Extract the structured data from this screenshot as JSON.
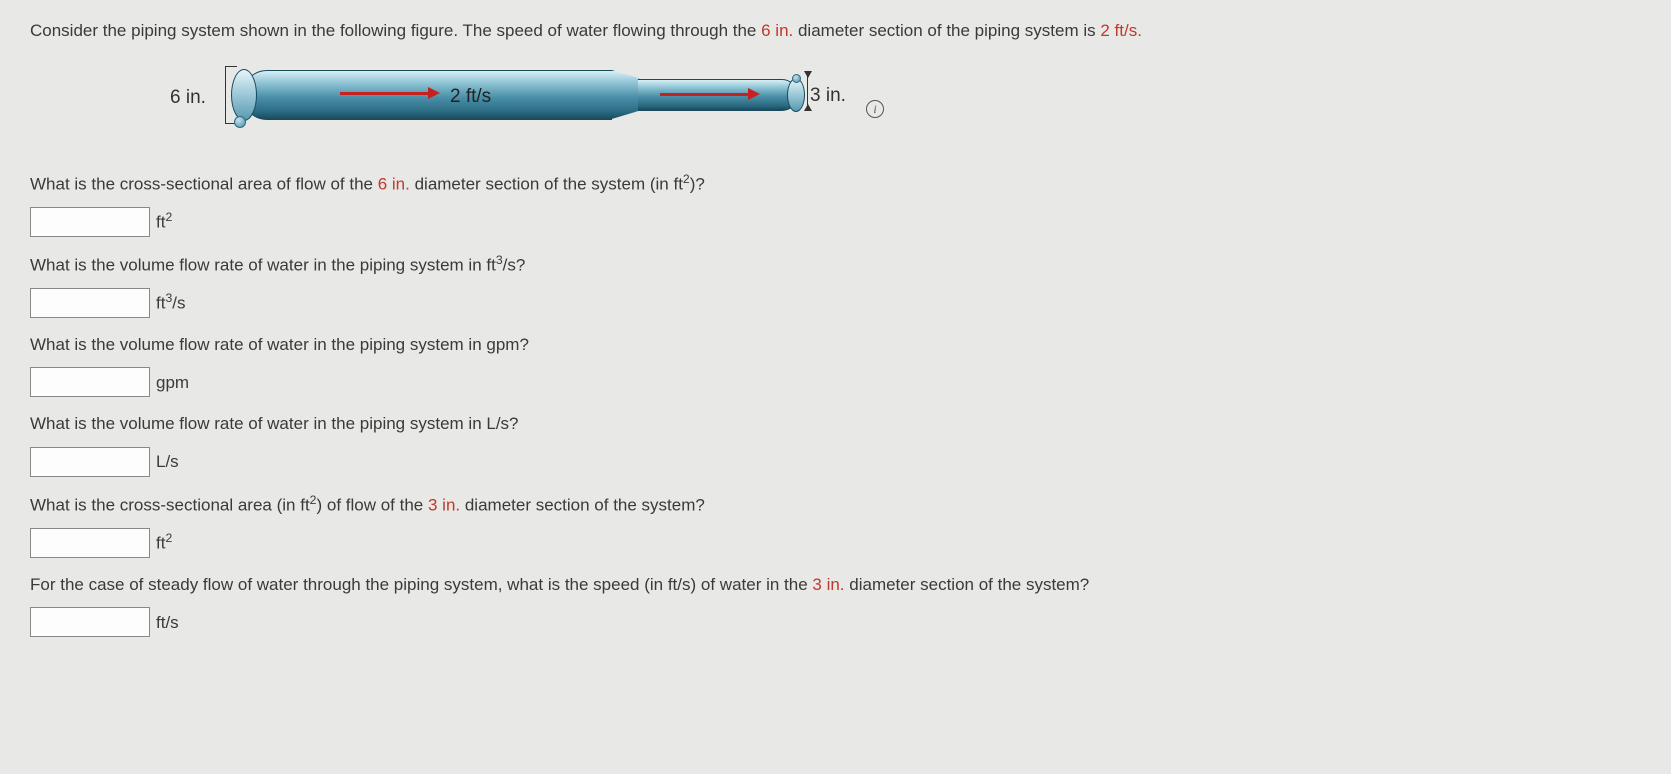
{
  "intro": {
    "pre": "Consider the piping system shown in the following figure. The speed of water flowing through the ",
    "d_large_text": "6 in.",
    "mid": " diameter section of the piping system is ",
    "speed_text": "2 ft/s.",
    "post": ""
  },
  "figure": {
    "label_large": "6 in.",
    "label_small": "3 in.",
    "velocity_label": "2 ft/s",
    "info_glyph": "i",
    "colors": {
      "highlight": "#c0392b",
      "arrow": "#c62020",
      "pipe_gradient_top": "#d8eef4",
      "pipe_gradient_bot": "#1a4a5c",
      "background": "#e8e8e6"
    }
  },
  "questions": [
    {
      "pre": "What is the cross-sectional area of flow of the ",
      "hl": "6 in.",
      "post": " diameter section of the system (in ft",
      "post_sup": "2",
      "post_tail": ")?",
      "unit_base": "ft",
      "unit_sup": "2",
      "unit_tail": ""
    },
    {
      "pre": "What is the volume flow rate of water in the piping system in ft",
      "hl": "",
      "post": "",
      "post_sup": "3",
      "post_tail": "/s?",
      "unit_base": "ft",
      "unit_sup": "3",
      "unit_tail": "/s"
    },
    {
      "pre": "What is the volume flow rate of water in the piping system in gpm?",
      "hl": "",
      "post": "",
      "post_sup": "",
      "post_tail": "",
      "unit_base": "gpm",
      "unit_sup": "",
      "unit_tail": ""
    },
    {
      "pre": "What is the volume flow rate of water in the piping system in L/s?",
      "hl": "",
      "post": "",
      "post_sup": "",
      "post_tail": "",
      "unit_base": "L/s",
      "unit_sup": "",
      "unit_tail": ""
    },
    {
      "pre": "What is the cross-sectional area (in ft",
      "hl": "",
      "post": "",
      "post_sup": "2",
      "post_tail_pre_hl": ") of flow of the ",
      "hl2": "3 in.",
      "post_tail": " diameter section of the system?",
      "unit_base": "ft",
      "unit_sup": "2",
      "unit_tail": ""
    },
    {
      "pre": "For the case of steady flow of water through the piping system, what is the speed (in ft/s) of water in the ",
      "hl": "3 in.",
      "post": " diameter section of the system?",
      "post_sup": "",
      "post_tail": "",
      "unit_base": "ft/s",
      "unit_sup": "",
      "unit_tail": ""
    }
  ]
}
